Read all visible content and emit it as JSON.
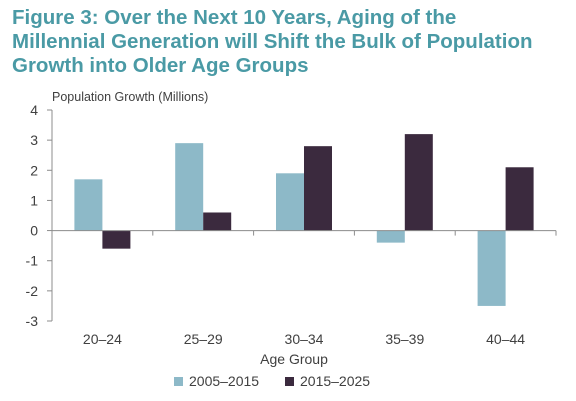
{
  "figure": {
    "title_lines": [
      "Figure 3:  Over the Next 10 Years, Aging of the",
      "Millennial Generation will Shift the Bulk of Population",
      "Growth into Older Age Groups"
    ]
  },
  "chart_data": {
    "type": "bar",
    "title": "Figure 3:  Over the Next 10 Years, Aging of the Millennial Generation will Shift the Bulk of Population Growth into Older Age Groups",
    "ylabel": "Population Growth (Millions)",
    "xlabel": "Age Group",
    "categories": [
      "20–24",
      "25–29",
      "30–34",
      "35–39",
      "40–44"
    ],
    "series": [
      {
        "name": "2005–2015",
        "values": [
          1.7,
          2.9,
          1.9,
          -0.4,
          -2.5
        ],
        "color": "#8db9c8"
      },
      {
        "name": "2015–2025",
        "values": [
          -0.6,
          0.6,
          2.8,
          3.2,
          2.1
        ],
        "color": "#3b2a3e"
      }
    ],
    "ylim": [
      -3,
      4
    ],
    "yticks": [
      "4",
      "3",
      "2",
      "1",
      "0",
      "-1",
      "-2",
      "-3"
    ],
    "grid": false,
    "legend_position": "bottom"
  }
}
